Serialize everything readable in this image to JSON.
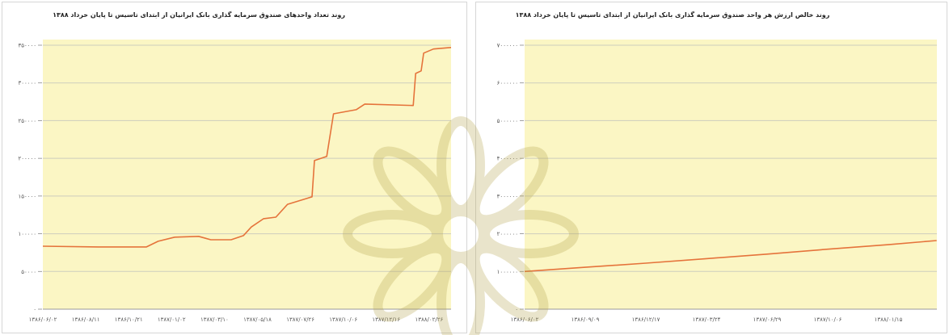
{
  "colors": {
    "plot_background": "#fbf6c4",
    "line": "#e5733b",
    "gridline": "#cdcdbd",
    "watermark": "#b3a248"
  },
  "chart_data": [
    {
      "type": "line",
      "title": "روند تعداد واحدهای صندوق سرمایه گذاری بانک ایرانیان از ابتدای تاسیس تا پایان خرداد ۱۳۸۸",
      "xlabel": "",
      "ylabel": "",
      "x_ticks": [
        "۱۳۸۶/۰۶/۰۲",
        "۱۳۸۶/۰۸/۱۱",
        "۱۳۸۶/۱۰/۲۱",
        "۱۳۸۷/۰۱/۰۲",
        "۱۳۸۷/۰۳/۱۰",
        "۱۳۸۷/۰۵/۱۸",
        "۱۳۸۷/۰۷/۲۶",
        "۱۳۸۷/۱۰/۰۶",
        "۱۳۸۷/۱۲/۱۶",
        "۱۳۸۸/۰۲/۲۶"
      ],
      "y_ticks": [
        "۰",
        "۵۰۰۰۰",
        "۱۰۰۰۰۰",
        "۱۵۰۰۰۰",
        "۲۰۰۰۰۰",
        "۲۵۰۰۰۰",
        "۳۰۰۰۰۰",
        "۳۵۰۰۰۰"
      ],
      "ylim": [
        0,
        350000
      ],
      "grid": true,
      "series": [
        {
          "points": [
            {
              "x": "۱۳۸۶/۰۶/۰۲",
              "y": 83500
            },
            {
              "x": "۱۳۸۶/۰۹/۰۱",
              "y": 82500
            },
            {
              "x": "۱۳۸۶/۱۱/۲۰",
              "y": 82500
            },
            {
              "x": "۱۳۸۶/۱۲/۰۹",
              "y": 90000
            },
            {
              "x": "۱۳۸۷/۰۱/۰۷",
              "y": 95500
            },
            {
              "x": "۱۳۸۷/۰۲/۱۵",
              "y": 96500
            },
            {
              "x": "۱۳۸۷/۰۳/۰۴",
              "y": 92000
            },
            {
              "x": "۱۳۸۷/۰۴/۰۶",
              "y": 92000
            },
            {
              "x": "۱۳۸۷/۰۴/۲۶",
              "y": 97500
            },
            {
              "x": "۱۳۸۷/۰۵/۰۸",
              "y": 109000
            },
            {
              "x": "۱۳۸۷/۰۵/۲۸",
              "y": 120000
            },
            {
              "x": "۱۳۸۷/۰۶/۱۷",
              "y": 122000
            },
            {
              "x": "۱۳۸۷/۰۷/۰۵",
              "y": 139000
            },
            {
              "x": "۱۳۸۷/۰۸/۱۵",
              "y": 149000
            },
            {
              "x": "۱۳۸۷/۰۸/۱۹",
              "y": 197000
            },
            {
              "x": "۱۳۸۷/۰۹/۰۹",
              "y": 202500
            },
            {
              "x": "۱۳۸۷/۰۹/۲۰",
              "y": 259000
            },
            {
              "x": "۱۳۸۷/۱۰/۲۷",
              "y": 264500
            },
            {
              "x": "۱۳۸۷/۱۱/۱۱",
              "y": 272000
            },
            {
              "x": "۱۳۸۸/۰۱/۳۱",
              "y": 270000
            },
            {
              "x": "۱۳۸۸/۰۲/۰۴",
              "y": 312500
            },
            {
              "x": "۱۳۸۸/۰۲/۱۳",
              "y": 316000
            },
            {
              "x": "۱۳۸۸/۰۲/۱۷",
              "y": 339500
            },
            {
              "x": "۱۳۸۸/۰۳/۰۲",
              "y": 345000
            },
            {
              "x": "۱۳۸۸/۰۳/۳۱",
              "y": 347000
            }
          ]
        }
      ]
    },
    {
      "type": "line",
      "title": "روند خالص ارزش هر واحد صندوق سرمایه گذاری بانک ایرانیان از ابتدای تاسیس تا پایان خرداد ۱۳۸۸",
      "xlabel": "",
      "ylabel": "",
      "x_ticks": [
        "۱۳۸۶/۰۶/۰۲",
        "۱۳۸۶/۰۹/۰۹",
        "۱۳۸۶/۱۲/۱۷",
        "۱۳۸۷/۰۳/۲۴",
        "۱۳۸۷/۰۶/۲۹",
        "۱۳۸۷/۱۰/۰۶",
        "۱۳۸۸/۰۱/۱۵"
      ],
      "y_ticks": [
        "۰",
        "۱۰۰۰۰۰۰",
        "۲۰۰۰۰۰۰",
        "۳۰۰۰۰۰۰",
        "۴۰۰۰۰۰۰",
        "۵۰۰۰۰۰۰",
        "۶۰۰۰۰۰۰",
        "۷۰۰۰۰۰۰"
      ],
      "ylim": [
        0,
        7000000
      ],
      "grid": true,
      "series": [
        {
          "points": [
            {
              "x": "۱۳۸۶/۰۶/۰۲",
              "y": 1000000
            },
            {
              "x": "۱۳۸۶/۰۹/۰۹",
              "y": 1110000
            },
            {
              "x": "۱۳۸۶/۱۲/۱۷",
              "y": 1220000
            },
            {
              "x": "۱۳۸۷/۰۳/۲۴",
              "y": 1340000
            },
            {
              "x": "۱۳۸۷/۰۶/۲۹",
              "y": 1460000
            },
            {
              "x": "۱۳۸۷/۱۰/۰۶",
              "y": 1590000
            },
            {
              "x": "۱۳۸۸/۰۱/۱۵",
              "y": 1710000
            },
            {
              "x": "۱۳۸۸/۰۳/۳۱",
              "y": 1820000
            }
          ]
        }
      ]
    }
  ]
}
